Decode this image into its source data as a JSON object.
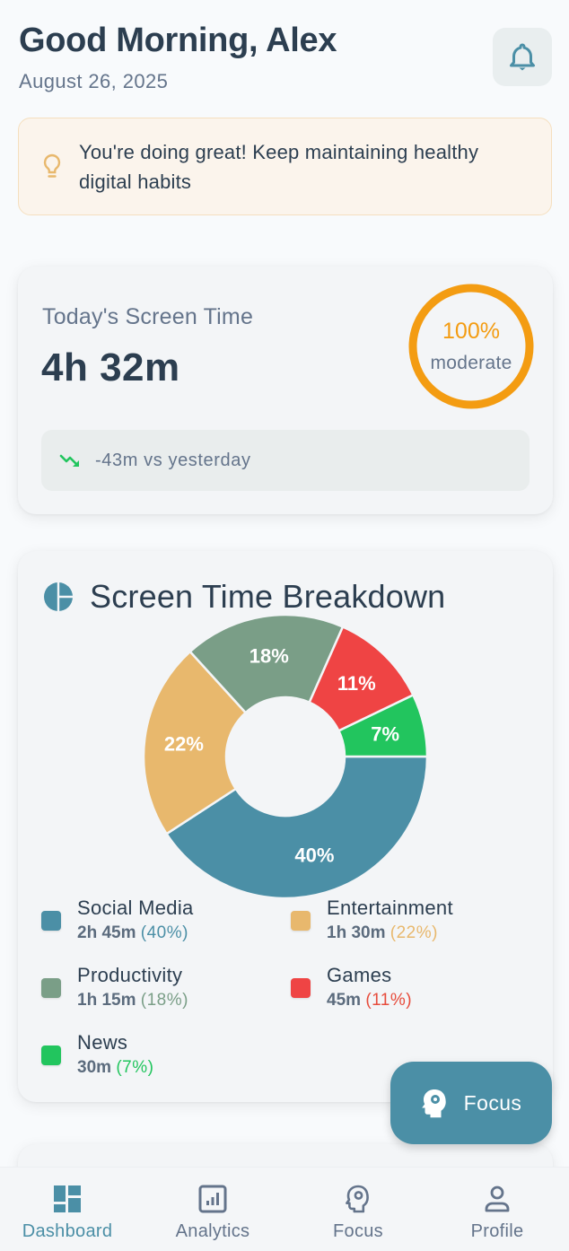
{
  "header": {
    "greeting": "Good Morning, Alex",
    "date": "August 26, 2025",
    "notification_icon": "bell-icon"
  },
  "tip": {
    "icon": "lightbulb-icon",
    "text": "You're doing great! Keep maintaining healthy digital habits"
  },
  "today": {
    "label": "Today's Screen Time",
    "value": "4h 32m",
    "ring_percent": "100%",
    "ring_status": "moderate",
    "trend_icon": "trending-down-icon",
    "trend_text": "-43m vs yesterday"
  },
  "breakdown": {
    "title": "Screen Time Breakdown",
    "icon": "pie-chart-icon",
    "legend": [
      {
        "name": "Social Media",
        "time": "2h 45m",
        "pct": "(40%)",
        "color": "#4b8fa6"
      },
      {
        "name": "Entertainment",
        "time": "1h 30m",
        "pct": "(22%)",
        "color": "#e8b86d"
      },
      {
        "name": "Productivity",
        "time": "1h 15m",
        "pct": "(18%)",
        "color": "#7a9e87"
      },
      {
        "name": "Games",
        "time": "45m",
        "pct": "(11%)",
        "color": "#ef4444"
      },
      {
        "name": "News",
        "time": "30m",
        "pct": "(7%)",
        "color": "#22c55e"
      }
    ]
  },
  "chart_data": {
    "type": "pie",
    "title": "Screen Time Breakdown",
    "categories": [
      "Social Media",
      "Entertainment",
      "Productivity",
      "Games",
      "News"
    ],
    "values": [
      40,
      22,
      18,
      11,
      7
    ],
    "labels": [
      "40%",
      "22%",
      "18%",
      "11%",
      "7%"
    ],
    "durations": [
      "2h 45m",
      "1h 30m",
      "1h 15m",
      "45m",
      "30m"
    ],
    "colors": [
      "#4b8fa6",
      "#e8b86d",
      "#7a9e87",
      "#ef4444",
      "#22c55e"
    ],
    "donut": true,
    "legend_position": "bottom"
  },
  "fab": {
    "label": "Focus",
    "icon": "head-gear-icon"
  },
  "nav": {
    "items": [
      {
        "label": "Dashboard",
        "icon": "dashboard-icon",
        "active": true
      },
      {
        "label": "Analytics",
        "icon": "analytics-icon",
        "active": false
      },
      {
        "label": "Focus",
        "icon": "focus-head-icon",
        "active": false
      },
      {
        "label": "Profile",
        "icon": "profile-icon",
        "active": false
      }
    ]
  },
  "colors": {
    "primary": "#4b8fa6",
    "warning": "#f39c12",
    "success": "#22c55e",
    "text": "#2c3e50",
    "muted": "#64748b"
  }
}
